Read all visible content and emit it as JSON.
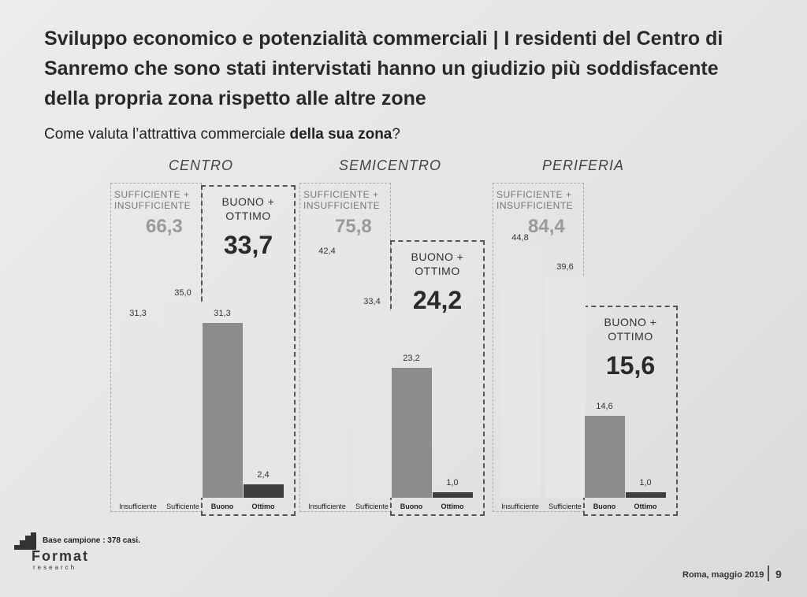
{
  "title": "Sviluppo economico e potenzialità commerciali | I residenti del Centro di Sanremo che sono stati intervistati hanno un giudizio più soddisfacente della propria zona rispetto alle altre zone",
  "subtitle": {
    "start": "Come valuta l’attrattiva commerciale ",
    "bold": "della sua zona",
    "end": "?"
  },
  "chart_data": [
    {
      "type": "bar",
      "title": "CENTRO",
      "categories": [
        "Insufficiente",
        "Sufficiente",
        "Buono",
        "Ottimo"
      ],
      "values": [
        31.3,
        35.0,
        31.3,
        2.4
      ],
      "value_labels": [
        "31,3",
        "35,0",
        "31,3",
        "2,4"
      ],
      "colors": [
        "#e6e6e7",
        "#e6e6e7",
        "#8c8c8c",
        "#3e3e3e"
      ],
      "groups": [
        {
          "label": "SUFFICIENTE + INSUFFICIENTE",
          "value": 66.3,
          "value_label": "66,3"
        },
        {
          "label": "BUONO + OTTIMO",
          "value": 33.7,
          "value_label": "33,7"
        }
      ]
    },
    {
      "type": "bar",
      "title": "SEMICENTRO",
      "categories": [
        "Insufficiente",
        "Sufficiente",
        "Buono",
        "Ottimo"
      ],
      "values": [
        42.4,
        33.4,
        23.2,
        1.0
      ],
      "value_labels": [
        "42,4",
        "33,4",
        "23,2",
        "1,0"
      ],
      "colors": [
        "#e6e6e7",
        "#e6e6e7",
        "#8c8c8c",
        "#3e3e3e"
      ],
      "groups": [
        {
          "label": "SUFFICIENTE + INSUFFICIENTE",
          "value": 75.8,
          "value_label": "75,8"
        },
        {
          "label": "BUONO + OTTIMO",
          "value": 24.2,
          "value_label": "24,2"
        }
      ]
    },
    {
      "type": "bar",
      "title": "PERIFERIA",
      "categories": [
        "Insufficiente",
        "Sufficiente",
        "Buono",
        "Ottimo"
      ],
      "values": [
        44.8,
        39.6,
        14.6,
        1.0
      ],
      "value_labels": [
        "44,8",
        "39,6",
        "14,6",
        "1,0"
      ],
      "colors": [
        "#e6e6e7",
        "#e6e6e7",
        "#8c8c8c",
        "#3e3e3e"
      ],
      "groups": [
        {
          "label": "SUFFICIENTE + INSUFFICIENTE",
          "value": 84.4,
          "value_label": "84,4"
        },
        {
          "label": "BUONO + OTTIMO",
          "value": 15.6,
          "value_label": "15,6"
        }
      ]
    }
  ],
  "footer": {
    "sample": "Base campione : 378 casi.",
    "logo": "Format",
    "logo_sub": "research",
    "place_date": "Roma, maggio 2019",
    "page": "9"
  }
}
